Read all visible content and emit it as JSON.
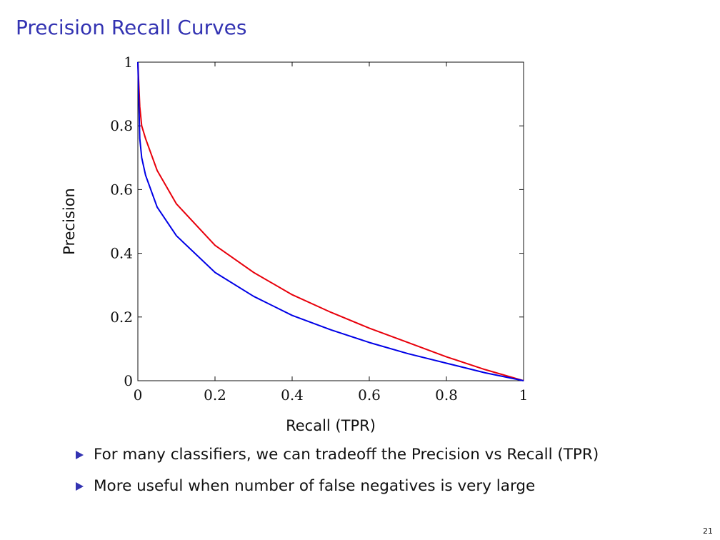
{
  "slide": {
    "title": "Precision Recall Curves",
    "page_number": "21",
    "bullets": [
      "For many classifiers, we can tradeoff the Precision vs Recall (TPR)",
      "More useful when number of false negatives is very large"
    ]
  },
  "colors": {
    "title": "#3333b2",
    "bullet": "#3333b2",
    "series_red": "#e8000b",
    "series_blue": "#0000e6"
  },
  "chart_data": {
    "type": "line",
    "title": "",
    "xlabel": "Recall (TPR)",
    "ylabel": "Precision",
    "xlim": [
      0,
      1
    ],
    "ylim": [
      0,
      1
    ],
    "xticks": [
      0,
      0.2,
      0.4,
      0.6,
      0.8,
      1
    ],
    "yticks": [
      0,
      0.2,
      0.4,
      0.6,
      0.8,
      1
    ],
    "xtick_labels": [
      "0",
      "0.2",
      "0.4",
      "0.6",
      "0.8",
      "1"
    ],
    "ytick_labels": [
      "0",
      "0.2",
      "0.4",
      "0.6",
      "0.8",
      "1"
    ],
    "grid": false,
    "legend": "none",
    "series": [
      {
        "color": "#e8000b",
        "x": [
          0,
          0.005,
          0.01,
          0.02,
          0.05,
          0.1,
          0.2,
          0.3,
          0.4,
          0.5,
          0.6,
          0.7,
          0.8,
          0.9,
          1.0
        ],
        "y": [
          1.0,
          0.86,
          0.8,
          0.76,
          0.66,
          0.555,
          0.425,
          0.34,
          0.27,
          0.215,
          0.165,
          0.12,
          0.075,
          0.035,
          0.0
        ]
      },
      {
        "color": "#0000e6",
        "x": [
          0,
          0.005,
          0.01,
          0.02,
          0.05,
          0.1,
          0.2,
          0.3,
          0.4,
          0.5,
          0.6,
          0.7,
          0.8,
          0.9,
          1.0
        ],
        "y": [
          1.0,
          0.76,
          0.7,
          0.645,
          0.545,
          0.455,
          0.34,
          0.265,
          0.205,
          0.16,
          0.12,
          0.085,
          0.055,
          0.025,
          0.0
        ]
      }
    ]
  }
}
